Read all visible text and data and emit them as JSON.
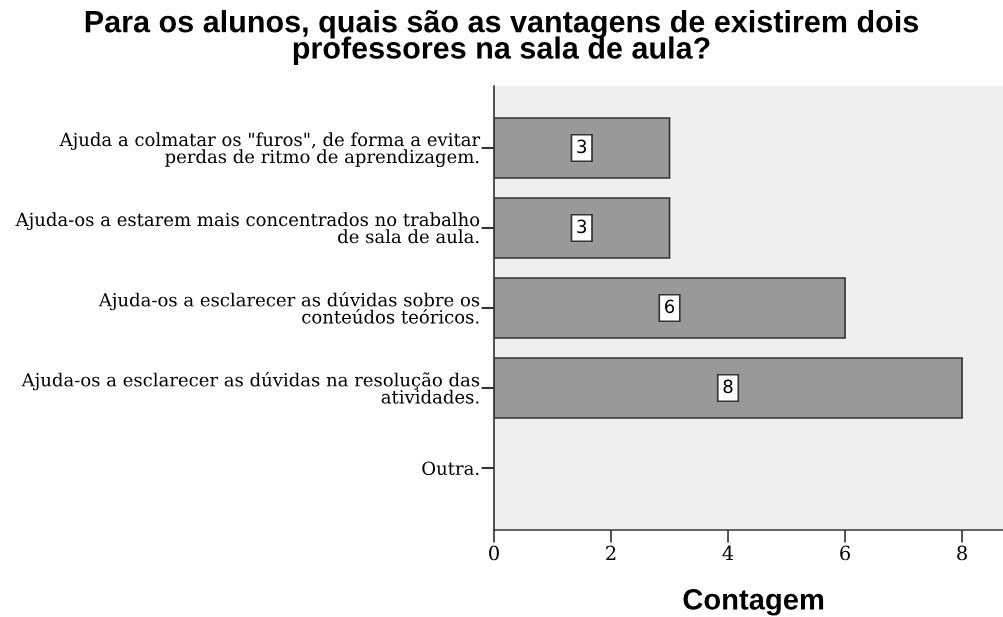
{
  "chart_data": {
    "type": "bar",
    "orientation": "horizontal",
    "title": "Para os alunos, quais são as vantagens de existirem dois\nprofessores na sala de aula?",
    "xlabel": "Contagem",
    "categories": [
      "Ajuda a colmatar os \"furos\", de forma a evitar\nperdas de ritmo de aprendizagem.",
      "Ajuda-os a estarem mais concentrados no trabalho\nde sala de aula.",
      "Ajuda-os a esclarecer as dúvidas sobre os\nconteúdos teóricos.",
      "Ajuda-os a esclarecer as dúvidas na resolução das\natividades.",
      "Outra."
    ],
    "values": [
      3,
      3,
      6,
      8,
      0
    ],
    "color": "#999999",
    "value_labels": [
      "3",
      "3",
      "6",
      "8",
      null
    ],
    "xlim": [
      0,
      8.7
    ],
    "xticks": [
      0,
      2,
      4,
      6,
      8
    ]
  }
}
